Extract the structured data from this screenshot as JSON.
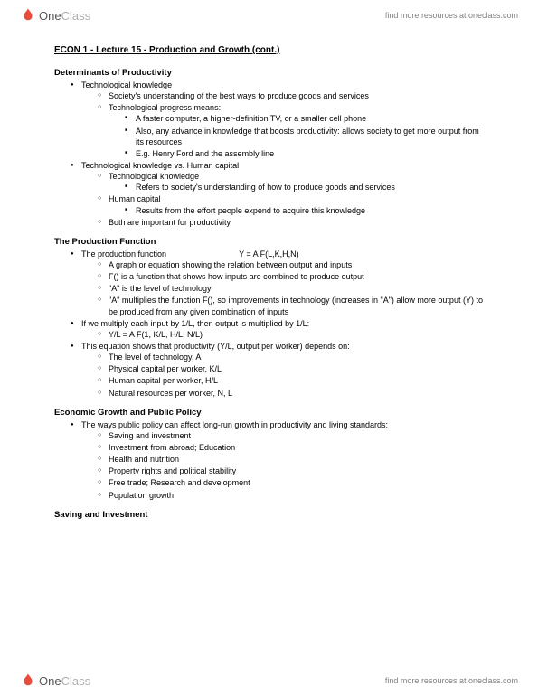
{
  "brand": {
    "name_part1": "One",
    "name_part2": "Class",
    "tagline": "find more resources at oneclass.com",
    "logo_color": "#e74c3c"
  },
  "title": "ECON 1 - Lecture 15 - Production and Growth (cont.)",
  "sections": [
    {
      "heading": "Determinants of Productivity",
      "items": [
        {
          "text": "Technological knowledge",
          "children": [
            {
              "text": "Society's understanding of the best ways to produce goods and services"
            },
            {
              "text": "Technological progress means:",
              "children": [
                {
                  "text": "A faster computer, a higher-definition TV, or a smaller cell phone"
                },
                {
                  "text": "Also, any advance in knowledge that boosts productivity: allows society to get more output from its resources"
                },
                {
                  "text": "E.g. Henry Ford and the assembly line"
                }
              ]
            }
          ]
        },
        {
          "text": "Technological knowledge vs. Human capital",
          "children": [
            {
              "text": "Technological knowledge",
              "children": [
                {
                  "text": "Refers to society's understanding of how to produce goods and services"
                }
              ]
            },
            {
              "text": "Human capital",
              "children": [
                {
                  "text": "Results from the effort people expend to acquire this knowledge"
                }
              ]
            },
            {
              "text": "Both are important for productivity"
            }
          ]
        }
      ]
    },
    {
      "heading": "The Production Function",
      "items": [
        {
          "text_parts": [
            "The production function",
            "Y = A F(L,K,H,N)"
          ],
          "children": [
            {
              "text": "A graph or equation showing the relation between output and inputs"
            },
            {
              "text": "F() is a function that shows how inputs are combined to produce output"
            },
            {
              "text": "\"A\" is the level of technology"
            },
            {
              "text": "\"A\" multiplies the function F(), so improvements in technology (increases in \"A\") allow more output (Y) to be produced from any given combination of inputs"
            }
          ]
        },
        {
          "text": "If we multiply each input by 1/L, then output is multiplied by 1/L:",
          "children": [
            {
              "text": "Y/L = A F(1, K/L, H/L, N/L)"
            }
          ]
        },
        {
          "text": "This equation shows that productivity (Y/L, output per worker) depends on:",
          "children": [
            {
              "text": "The level of technology, A"
            },
            {
              "text": "Physical capital per worker, K/L"
            },
            {
              "text": "Human capital per worker, H/L"
            },
            {
              "text": "Natural resources per worker, N, L"
            }
          ]
        }
      ]
    },
    {
      "heading": "Economic Growth and Public Policy",
      "items": [
        {
          "text": "The ways public policy can affect long-run growth in productivity and living standards:",
          "children": [
            {
              "text": "Saving and investment"
            },
            {
              "text": "Investment from abroad; Education"
            },
            {
              "text": "Health and nutrition"
            },
            {
              "text": "Property rights and political stability"
            },
            {
              "text": "Free trade; Research and development"
            },
            {
              "text": "Population growth"
            }
          ]
        }
      ]
    },
    {
      "heading": "Saving and Investment",
      "items": []
    }
  ]
}
